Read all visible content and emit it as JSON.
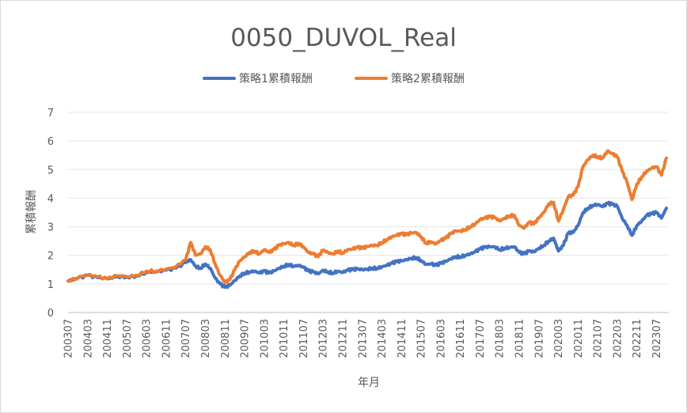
{
  "chart_data": {
    "type": "line",
    "title": "0050_DUVOL_Real",
    "xlabel": "年月",
    "ylabel": "累積報酬",
    "ylim": [
      0,
      7
    ],
    "yticks": [
      "0",
      "1",
      "2",
      "3",
      "4",
      "5",
      "6",
      "7"
    ],
    "xticks": [
      "200307",
      "200403",
      "200411",
      "200507",
      "200603",
      "200611",
      "200707",
      "200803",
      "200811",
      "200907",
      "201003",
      "201011",
      "201107",
      "201203",
      "201211",
      "201307",
      "201403",
      "201411",
      "201507",
      "201603",
      "201611",
      "201707",
      "201803",
      "201811",
      "201907",
      "202003",
      "202011",
      "202107",
      "202203",
      "202211",
      "202307"
    ],
    "grid": true,
    "legend": "top",
    "series": [
      {
        "name": "策略1累積報酬",
        "color": "#4472C4",
        "points": [
          [
            "200307",
            1.1
          ],
          [
            "200311",
            1.2
          ],
          [
            "200403",
            1.3
          ],
          [
            "200407",
            1.22
          ],
          [
            "200411",
            1.18
          ],
          [
            "200503",
            1.26
          ],
          [
            "200507",
            1.24
          ],
          [
            "200511",
            1.28
          ],
          [
            "200603",
            1.4
          ],
          [
            "200607",
            1.42
          ],
          [
            "200611",
            1.48
          ],
          [
            "200703",
            1.55
          ],
          [
            "200707",
            1.75
          ],
          [
            "200709",
            1.85
          ],
          [
            "200711",
            1.62
          ],
          [
            "200801",
            1.55
          ],
          [
            "200803",
            1.7
          ],
          [
            "200805",
            1.55
          ],
          [
            "200807",
            1.2
          ],
          [
            "200809",
            1.0
          ],
          [
            "200811",
            0.88
          ],
          [
            "200901",
            0.95
          ],
          [
            "200903",
            1.12
          ],
          [
            "200905",
            1.28
          ],
          [
            "200907",
            1.38
          ],
          [
            "200909",
            1.42
          ],
          [
            "200911",
            1.45
          ],
          [
            "201001",
            1.38
          ],
          [
            "201003",
            1.45
          ],
          [
            "201005",
            1.38
          ],
          [
            "201007",
            1.45
          ],
          [
            "201009",
            1.55
          ],
          [
            "201011",
            1.62
          ],
          [
            "201101",
            1.68
          ],
          [
            "201103",
            1.62
          ],
          [
            "201105",
            1.65
          ],
          [
            "201107",
            1.58
          ],
          [
            "201109",
            1.45
          ],
          [
            "201111",
            1.42
          ],
          [
            "201201",
            1.35
          ],
          [
            "201203",
            1.48
          ],
          [
            "201205",
            1.42
          ],
          [
            "201207",
            1.38
          ],
          [
            "201209",
            1.45
          ],
          [
            "201211",
            1.4
          ],
          [
            "201301",
            1.48
          ],
          [
            "201303",
            1.5
          ],
          [
            "201305",
            1.52
          ],
          [
            "201307",
            1.5
          ],
          [
            "201309",
            1.52
          ],
          [
            "201311",
            1.55
          ],
          [
            "201401",
            1.55
          ],
          [
            "201403",
            1.6
          ],
          [
            "201405",
            1.65
          ],
          [
            "201407",
            1.72
          ],
          [
            "201409",
            1.78
          ],
          [
            "201411",
            1.8
          ],
          [
            "201501",
            1.85
          ],
          [
            "201503",
            1.9
          ],
          [
            "201505",
            1.92
          ],
          [
            "201507",
            1.82
          ],
          [
            "201509",
            1.68
          ],
          [
            "201511",
            1.7
          ],
          [
            "201601",
            1.65
          ],
          [
            "201603",
            1.72
          ],
          [
            "201605",
            1.78
          ],
          [
            "201607",
            1.88
          ],
          [
            "201609",
            1.95
          ],
          [
            "201611",
            1.95
          ],
          [
            "201701",
            2.0
          ],
          [
            "201703",
            2.05
          ],
          [
            "201705",
            2.12
          ],
          [
            "201707",
            2.22
          ],
          [
            "201709",
            2.28
          ],
          [
            "201711",
            2.3
          ],
          [
            "201801",
            2.3
          ],
          [
            "201803",
            2.2
          ],
          [
            "201805",
            2.25
          ],
          [
            "201807",
            2.28
          ],
          [
            "201809",
            2.3
          ],
          [
            "201811",
            2.1
          ],
          [
            "201901",
            2.05
          ],
          [
            "201903",
            2.15
          ],
          [
            "201905",
            2.12
          ],
          [
            "201907",
            2.25
          ],
          [
            "201909",
            2.35
          ],
          [
            "201911",
            2.5
          ],
          [
            "202001",
            2.6
          ],
          [
            "202003",
            2.15
          ],
          [
            "202005",
            2.35
          ],
          [
            "202007",
            2.78
          ],
          [
            "202009",
            2.8
          ],
          [
            "202011",
            3.05
          ],
          [
            "202101",
            3.5
          ],
          [
            "202103",
            3.65
          ],
          [
            "202105",
            3.75
          ],
          [
            "202107",
            3.78
          ],
          [
            "202109",
            3.7
          ],
          [
            "202111",
            3.82
          ],
          [
            "202201",
            3.78
          ],
          [
            "202203",
            3.72
          ],
          [
            "202205",
            3.3
          ],
          [
            "202207",
            3.05
          ],
          [
            "202209",
            2.7
          ],
          [
            "202211",
            3.05
          ],
          [
            "202301",
            3.2
          ],
          [
            "202303",
            3.4
          ],
          [
            "202305",
            3.45
          ],
          [
            "202307",
            3.5
          ],
          [
            "202309",
            3.3
          ],
          [
            "202311",
            3.65
          ]
        ]
      },
      {
        "name": "策略2累積報酬",
        "color": "#ED7D31",
        "points": [
          [
            "200307",
            1.1
          ],
          [
            "200311",
            1.22
          ],
          [
            "200403",
            1.32
          ],
          [
            "200407",
            1.25
          ],
          [
            "200411",
            1.18
          ],
          [
            "200503",
            1.28
          ],
          [
            "200507",
            1.25
          ],
          [
            "200511",
            1.3
          ],
          [
            "200603",
            1.45
          ],
          [
            "200607",
            1.45
          ],
          [
            "200611",
            1.52
          ],
          [
            "200703",
            1.6
          ],
          [
            "200707",
            1.85
          ],
          [
            "200709",
            2.45
          ],
          [
            "200711",
            2.0
          ],
          [
            "200801",
            2.05
          ],
          [
            "200803",
            2.3
          ],
          [
            "200805",
            2.2
          ],
          [
            "200807",
            1.7
          ],
          [
            "200809",
            1.3
          ],
          [
            "200811",
            1.05
          ],
          [
            "200901",
            1.15
          ],
          [
            "200903",
            1.5
          ],
          [
            "200905",
            1.8
          ],
          [
            "200907",
            1.95
          ],
          [
            "200909",
            2.1
          ],
          [
            "200911",
            2.15
          ],
          [
            "201001",
            2.05
          ],
          [
            "201003",
            2.2
          ],
          [
            "201005",
            2.1
          ],
          [
            "201007",
            2.2
          ],
          [
            "201009",
            2.35
          ],
          [
            "201011",
            2.4
          ],
          [
            "201101",
            2.45
          ],
          [
            "201103",
            2.35
          ],
          [
            "201105",
            2.42
          ],
          [
            "201107",
            2.3
          ],
          [
            "201109",
            2.1
          ],
          [
            "201111",
            2.05
          ],
          [
            "201201",
            1.95
          ],
          [
            "201203",
            2.18
          ],
          [
            "201205",
            2.1
          ],
          [
            "201207",
            2.05
          ],
          [
            "201209",
            2.15
          ],
          [
            "201211",
            2.08
          ],
          [
            "201301",
            2.2
          ],
          [
            "201303",
            2.22
          ],
          [
            "201305",
            2.28
          ],
          [
            "201307",
            2.25
          ],
          [
            "201309",
            2.3
          ],
          [
            "201311",
            2.35
          ],
          [
            "201401",
            2.35
          ],
          [
            "201403",
            2.45
          ],
          [
            "201405",
            2.55
          ],
          [
            "201407",
            2.65
          ],
          [
            "201409",
            2.7
          ],
          [
            "201411",
            2.75
          ],
          [
            "201501",
            2.72
          ],
          [
            "201503",
            2.78
          ],
          [
            "201505",
            2.8
          ],
          [
            "201507",
            2.65
          ],
          [
            "201509",
            2.42
          ],
          [
            "201511",
            2.48
          ],
          [
            "201601",
            2.4
          ],
          [
            "201603",
            2.52
          ],
          [
            "201605",
            2.6
          ],
          [
            "201607",
            2.75
          ],
          [
            "201609",
            2.85
          ],
          [
            "201611",
            2.85
          ],
          [
            "201701",
            2.9
          ],
          [
            "201703",
            3.0
          ],
          [
            "201705",
            3.1
          ],
          [
            "201707",
            3.25
          ],
          [
            "201709",
            3.3
          ],
          [
            "201711",
            3.35
          ],
          [
            "201801",
            3.32
          ],
          [
            "201803",
            3.2
          ],
          [
            "201805",
            3.3
          ],
          [
            "201807",
            3.38
          ],
          [
            "201809",
            3.4
          ],
          [
            "201811",
            3.05
          ],
          [
            "201901",
            2.95
          ],
          [
            "201903",
            3.15
          ],
          [
            "201905",
            3.1
          ],
          [
            "201907",
            3.3
          ],
          [
            "201909",
            3.5
          ],
          [
            "201911",
            3.8
          ],
          [
            "202001",
            3.85
          ],
          [
            "202003",
            3.2
          ],
          [
            "202005",
            3.6
          ],
          [
            "202007",
            4.05
          ],
          [
            "202009",
            4.1
          ],
          [
            "202011",
            4.4
          ],
          [
            "202101",
            5.1
          ],
          [
            "202103",
            5.35
          ],
          [
            "202105",
            5.5
          ],
          [
            "202107",
            5.45
          ],
          [
            "202109",
            5.4
          ],
          [
            "202111",
            5.65
          ],
          [
            "202201",
            5.55
          ],
          [
            "202203",
            5.45
          ],
          [
            "202205",
            4.95
          ],
          [
            "202207",
            4.55
          ],
          [
            "202209",
            3.95
          ],
          [
            "202211",
            4.5
          ],
          [
            "202301",
            4.75
          ],
          [
            "202303",
            4.95
          ],
          [
            "202305",
            5.05
          ],
          [
            "202307",
            5.1
          ],
          [
            "202309",
            4.8
          ],
          [
            "202311",
            5.4
          ]
        ]
      }
    ]
  }
}
